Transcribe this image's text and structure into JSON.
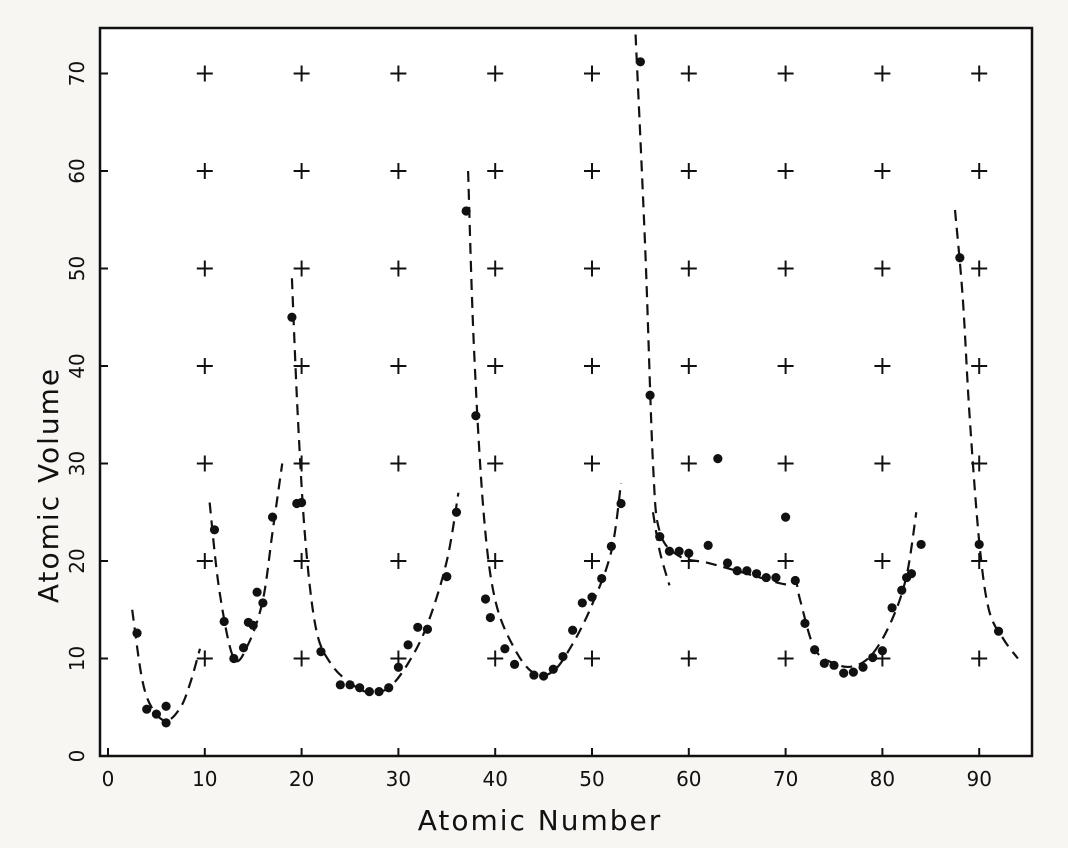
{
  "chart_data": {
    "type": "scatter",
    "title": "",
    "xlabel": "Atomic Number",
    "ylabel": "Atomic Volume",
    "xlim": [
      0,
      95
    ],
    "ylim": [
      0,
      75
    ],
    "x_ticks": [
      0,
      10,
      20,
      30,
      40,
      50,
      60,
      70,
      80,
      90
    ],
    "y_ticks": [
      0,
      10,
      20,
      30,
      40,
      50,
      60,
      70
    ],
    "grid": "plus-markers at every tick intersection",
    "series": [
      {
        "values": [
          [
            3,
            12.6
          ],
          [
            4,
            4.8
          ],
          [
            5,
            4.3
          ],
          [
            6,
            5.1
          ],
          [
            6,
            3.4
          ],
          [
            11,
            23.2
          ],
          [
            12,
            13.8
          ],
          [
            13,
            10
          ],
          [
            14,
            11.1
          ],
          [
            14.5,
            13.7
          ],
          [
            15,
            13.4
          ],
          [
            15.4,
            16.8
          ],
          [
            16,
            15.7
          ],
          [
            17,
            24.5
          ],
          [
            19,
            45
          ],
          [
            19.5,
            25.9
          ],
          [
            20,
            26.0
          ],
          [
            22,
            10.7
          ],
          [
            24,
            7.3
          ],
          [
            25,
            7.3
          ],
          [
            26,
            7.0
          ],
          [
            27,
            6.6
          ],
          [
            28,
            6.6
          ],
          [
            29,
            7.0
          ],
          [
            30,
            9.1
          ],
          [
            31,
            11.4
          ],
          [
            32,
            13.2
          ],
          [
            33,
            13.0
          ],
          [
            35,
            18.4
          ],
          [
            36,
            25
          ],
          [
            37,
            55.9
          ],
          [
            38,
            34.9
          ],
          [
            39,
            16.1
          ],
          [
            39.5,
            14.2
          ],
          [
            41,
            11.0
          ],
          [
            42,
            9.4
          ],
          [
            44,
            8.3
          ],
          [
            45,
            8.2
          ],
          [
            46,
            8.9
          ],
          [
            47,
            10.2
          ],
          [
            48,
            12.9
          ],
          [
            49,
            15.7
          ],
          [
            50,
            16.3
          ],
          [
            51,
            18.2
          ],
          [
            52,
            21.5
          ],
          [
            53,
            25.9
          ],
          [
            55,
            71.2
          ],
          [
            56,
            37.0
          ],
          [
            57,
            22.5
          ],
          [
            58,
            21.0
          ],
          [
            59,
            21.0
          ],
          [
            60,
            20.8
          ],
          [
            62,
            21.6
          ],
          [
            63,
            30.5
          ],
          [
            64,
            19.8
          ],
          [
            65,
            19.0
          ],
          [
            66,
            19.0
          ],
          [
            67,
            18.7
          ],
          [
            68,
            18.3
          ],
          [
            69,
            18.3
          ],
          [
            70,
            24.5
          ],
          [
            71,
            18.0
          ],
          [
            72,
            13.6
          ],
          [
            73,
            10.9
          ],
          [
            74,
            9.5
          ],
          [
            75,
            9.3
          ],
          [
            76,
            8.5
          ],
          [
            77,
            8.6
          ],
          [
            78,
            9.1
          ],
          [
            79,
            10.1
          ],
          [
            80,
            10.8
          ],
          [
            81,
            15.2
          ],
          [
            82,
            17.0
          ],
          [
            82.5,
            18.3
          ],
          [
            83,
            18.7
          ],
          [
            84,
            21.7
          ],
          [
            88,
            51.1
          ],
          [
            90,
            21.7
          ],
          [
            92,
            12.8
          ]
        ]
      }
    ],
    "curve_segments": [
      [
        [
          2.5,
          15
        ],
        [
          3.5,
          8
        ],
        [
          4.5,
          5
        ],
        [
          6,
          3.6
        ],
        [
          7.5,
          5
        ],
        [
          8.5,
          7.5
        ],
        [
          9.5,
          11
        ]
      ],
      [
        [
          10.5,
          26
        ],
        [
          11.5,
          17
        ],
        [
          13,
          10
        ],
        [
          14.5,
          11.5
        ],
        [
          16,
          16
        ],
        [
          17,
          23
        ],
        [
          18,
          30
        ]
      ],
      [
        [
          19,
          49
        ],
        [
          19.6,
          35
        ],
        [
          20.4,
          22
        ],
        [
          21.5,
          13
        ],
        [
          23,
          9.5
        ],
        [
          25,
          7.5
        ],
        [
          27,
          6.5
        ],
        [
          29,
          7
        ],
        [
          31,
          9.5
        ],
        [
          33,
          13.5
        ],
        [
          35,
          20
        ],
        [
          36.2,
          27
        ]
      ],
      [
        [
          37.2,
          60
        ],
        [
          37.8,
          42
        ],
        [
          38.8,
          25
        ],
        [
          40,
          16
        ],
        [
          42,
          11
        ],
        [
          44,
          8.5
        ],
        [
          46,
          8.7
        ],
        [
          48,
          11.5
        ],
        [
          50,
          15.5
        ],
        [
          52,
          21
        ],
        [
          53,
          28
        ]
      ],
      [
        [
          54.5,
          74
        ],
        [
          55.5,
          52
        ],
        [
          56.3,
          30
        ],
        [
          57,
          23
        ],
        [
          59,
          20.5
        ],
        [
          62,
          19.8
        ],
        [
          66,
          18.7
        ],
        [
          70,
          17.6
        ],
        [
          71,
          18
        ],
        [
          71.5,
          16
        ],
        [
          73,
          11
        ],
        [
          75,
          9.5
        ],
        [
          77,
          9.2
        ],
        [
          79,
          10.5
        ],
        [
          81,
          14
        ],
        [
          82.5,
          18.5
        ],
        [
          83.5,
          25
        ]
      ],
      [
        [
          56.3,
          25
        ],
        [
          57,
          21
        ],
        [
          58,
          17.5
        ]
      ],
      [
        [
          87.5,
          56
        ],
        [
          88.3,
          47
        ],
        [
          89,
          35
        ],
        [
          90,
          22
        ],
        [
          91,
          15
        ],
        [
          92.5,
          12
        ],
        [
          94,
          10
        ]
      ]
    ]
  }
}
